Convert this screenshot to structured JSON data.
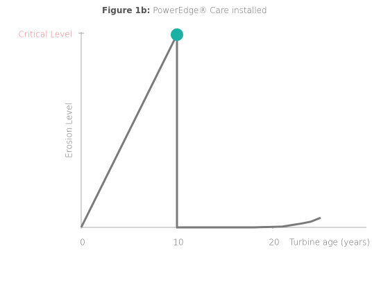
{
  "chart_data": {
    "type": "line",
    "title": "Figure 1b:",
    "subtitle": "PowerEdge® Care installed",
    "ylabel": "Erosion Level",
    "xlabel": "Turbine age (years)",
    "xlim": [
      0,
      25
    ],
    "xticks": [
      0,
      10,
      20
    ],
    "ylim": [
      0,
      1
    ],
    "yticks": [
      {
        "value": 1,
        "label": "Critical Level"
      }
    ],
    "ytick_color": "#e8797a",
    "series": [
      {
        "color": "#7a7a7a",
        "x": [
          0,
          10,
          10,
          18,
          21,
          22,
          23,
          24,
          25
        ],
        "values": [
          0,
          1,
          0,
          0,
          0.004,
          0.012,
          0.02,
          0.03,
          0.05
        ]
      }
    ],
    "highlight": {
      "x": 10,
      "y": 1,
      "color": "#1ab0a4"
    }
  }
}
